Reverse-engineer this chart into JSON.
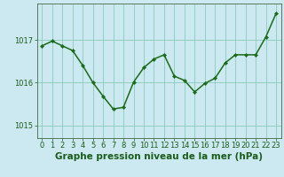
{
  "x": [
    0,
    1,
    2,
    3,
    4,
    5,
    6,
    7,
    8,
    9,
    10,
    11,
    12,
    13,
    14,
    15,
    16,
    17,
    18,
    19,
    20,
    21,
    22,
    23
  ],
  "y": [
    1016.86,
    1016.97,
    1016.86,
    1016.75,
    1016.4,
    1016.0,
    1015.68,
    1015.38,
    1015.42,
    1016.01,
    1016.35,
    1016.55,
    1016.65,
    1016.15,
    1016.05,
    1015.78,
    1015.98,
    1016.1,
    1016.46,
    1016.65,
    1016.65,
    1016.65,
    1017.07,
    1017.62
  ],
  "line_color": "#1a6b1a",
  "marker": "D",
  "marker_size": 2.2,
  "line_width": 1.1,
  "bg_color": "#cce8f0",
  "plot_bg_color": "#cce8f0",
  "grid_color": "#88ccbb",
  "xlabel": "Graphe pression niveau de la mer (hPa)",
  "xlabel_color": "#1a5c1a",
  "xlabel_fontsize": 7.5,
  "tick_color": "#1a5c1a",
  "tick_fontsize": 6.0,
  "yticks": [
    1015,
    1016,
    1017
  ],
  "ylim": [
    1014.7,
    1017.85
  ],
  "xlim": [
    -0.5,
    23.5
  ],
  "spine_color": "#446644"
}
